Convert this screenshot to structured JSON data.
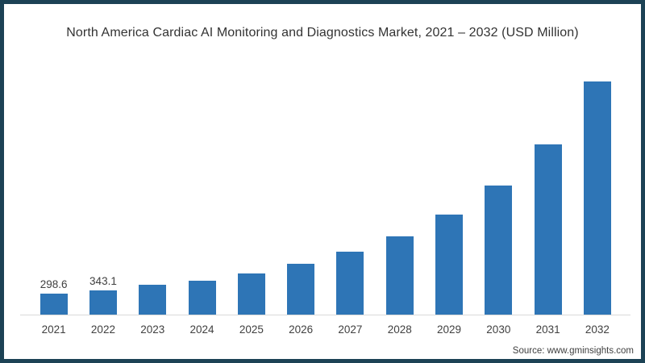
{
  "chart_data": {
    "type": "bar",
    "title": "North America Cardiac AI Monitoring and Diagnostics Market, 2021 – 2032 (USD Million)",
    "categories": [
      "2021",
      "2022",
      "2023",
      "2024",
      "2025",
      "2026",
      "2027",
      "2028",
      "2029",
      "2030",
      "2031",
      "2032"
    ],
    "values": [
      298.6,
      343.1,
      415,
      475,
      575,
      710,
      880,
      1095,
      1410,
      1810,
      2395,
      3275
    ],
    "data_labels": [
      "298.6",
      "343.1",
      "",
      "",
      "",
      "",
      "",
      "",
      "",
      "",
      "",
      ""
    ],
    "xlabel": "",
    "ylabel": "",
    "ylim": [
      0,
      3400
    ],
    "grid": false,
    "legend": "none",
    "bar_color": "#2E75B6"
  },
  "source": {
    "label": "Source: www.gminsights.com"
  },
  "colors": {
    "frame_border": "#1C4255",
    "title_text": "#333333",
    "axis_text": "#404040",
    "baseline": "#D9D9D9",
    "background": "#FFFFFF"
  }
}
